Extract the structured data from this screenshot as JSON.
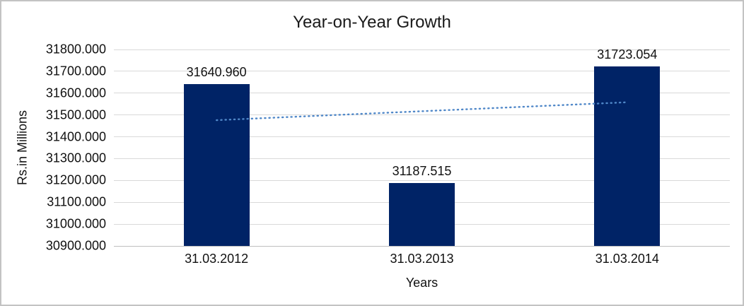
{
  "chart_data": {
    "type": "bar",
    "title": "Year-on-Year Growth",
    "xlabel": "Years",
    "ylabel": "Rs.in Millions",
    "categories": [
      "31.03.2012",
      "31.03.2013",
      "31.03.2014"
    ],
    "values": [
      31640.96,
      31187.515,
      31723.054
    ],
    "data_labels": [
      "31640.960",
      "31187.515",
      "31723.054"
    ],
    "y_axis": {
      "min": 30900,
      "max": 31800,
      "step": 100,
      "tick_labels": [
        "31800.000",
        "31700.000",
        "31600.000",
        "31500.000",
        "31400.000",
        "31300.000",
        "31200.000",
        "31100.000",
        "31000.000",
        "30900.000"
      ]
    },
    "trendline": {
      "style": "dotted",
      "start_value": 31476.1,
      "end_value": 31558.2,
      "color": "#4f87c8"
    },
    "colors": {
      "bar": "#002366",
      "gridline": "#d9d9d9",
      "axis_line": "#bfbfbf",
      "text": "#111111"
    },
    "legend": "none",
    "grid": "horizontal"
  }
}
